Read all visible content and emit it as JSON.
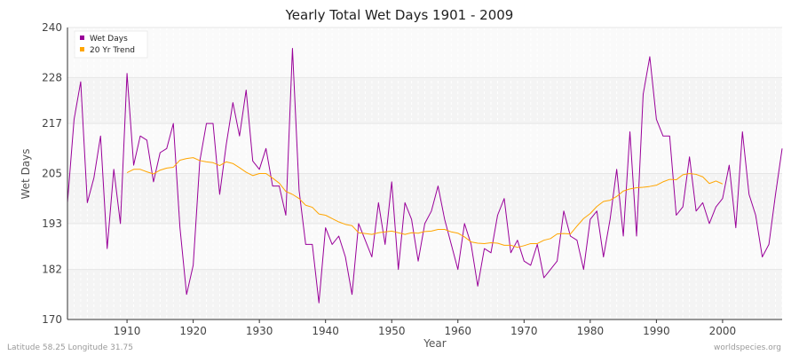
{
  "chart_data": {
    "type": "line",
    "title": "Yearly Total Wet Days 1901 - 2009",
    "xlabel": "Year",
    "ylabel": "Wet Days",
    "xlim": [
      1901,
      2009
    ],
    "ylim": [
      170,
      240
    ],
    "yticks": [
      170,
      182,
      193,
      205,
      217,
      228,
      240
    ],
    "xticks": [
      1910,
      1920,
      1930,
      1940,
      1950,
      1960,
      1970,
      1980,
      1990,
      2000
    ],
    "grid": true,
    "legend": "top-left",
    "series": [
      {
        "name": "Wet Days",
        "color": "#990099",
        "x_start": 1901,
        "values": [
          198,
          218,
          227,
          198,
          204,
          214,
          187,
          206,
          193,
          229,
          207,
          214,
          213,
          203,
          210,
          211,
          217,
          192,
          176,
          183,
          208,
          217,
          217,
          200,
          212,
          222,
          214,
          225,
          208,
          206,
          211,
          202,
          202,
          195,
          235,
          201,
          188,
          188,
          174,
          192,
          188,
          190,
          185,
          176,
          193,
          189,
          185,
          198,
          188,
          203,
          182,
          198,
          194,
          184,
          193,
          196,
          202,
          194,
          188,
          182,
          193,
          188,
          178,
          187,
          186,
          195,
          199,
          186,
          189,
          184,
          183,
          188,
          180,
          182,
          184,
          196,
          190,
          189,
          182,
          194,
          196,
          185,
          194,
          206,
          190,
          215,
          190,
          224,
          233,
          218,
          214,
          214,
          195,
          197,
          209,
          196,
          198,
          193,
          197,
          199,
          207,
          192,
          215,
          200,
          195,
          185,
          188,
          200,
          211
        ]
      },
      {
        "name": "20 Yr Trend",
        "color": "#FFA500",
        "x_start": 1910,
        "values": [
          205.2,
          206.0,
          206.0,
          205.4,
          204.9,
          205.8,
          206.3,
          206.5,
          208.2,
          208.6,
          208.8,
          208.1,
          207.8,
          207.6,
          206.9,
          207.8,
          207.4,
          206.4,
          205.3,
          204.5,
          205.0,
          205.0,
          203.9,
          202.7,
          200.7,
          200.0,
          199.0,
          197.4,
          196.9,
          195.3,
          195.0,
          194.2,
          193.4,
          192.8,
          192.5,
          190.8,
          190.6,
          190.4,
          190.8,
          191.0,
          191.2,
          190.8,
          190.4,
          190.8,
          190.7,
          191.1,
          191.2,
          191.6,
          191.6,
          191.0,
          190.7,
          189.8,
          188.6,
          188.3,
          188.2,
          188.4,
          188.3,
          187.8,
          187.8,
          187.3,
          187.7,
          188.2,
          188.2,
          189.0,
          189.4,
          190.5,
          190.6,
          190.5,
          192.4,
          194.2,
          195.4,
          197.1,
          198.3,
          198.6,
          199.5,
          200.8,
          201.3,
          201.6,
          201.7,
          201.9,
          202.2,
          203.0,
          203.6,
          203.5,
          204.7,
          205.0,
          204.8,
          204.2,
          202.6,
          203.2,
          202.5
        ]
      }
    ]
  },
  "footer": {
    "location": "Latitude 58.25 Longitude 31.75",
    "source": "worldspecies.org"
  }
}
